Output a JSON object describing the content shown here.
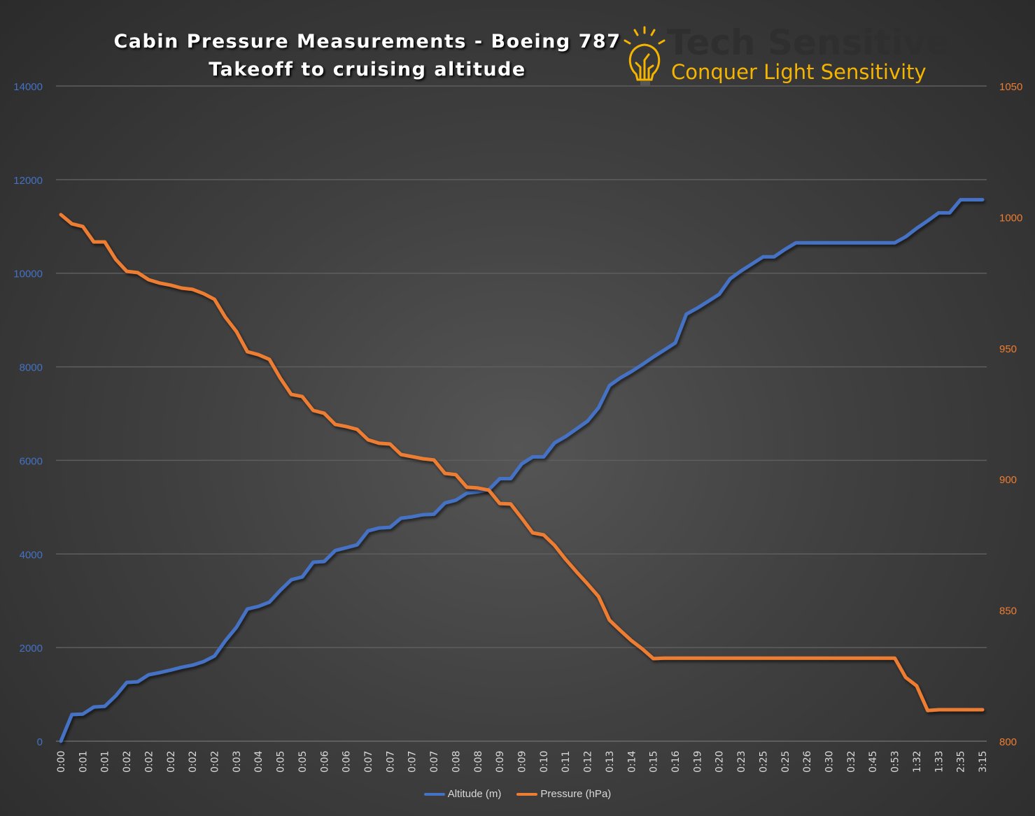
{
  "chart_data": {
    "type": "line",
    "title": "Cabin Pressure Measurements - Boeing 787",
    "subtitle": "Takeoff to cruising altitude",
    "x_tick_labels": [
      "0:00",
      "0:01",
      "0:01",
      "0:02",
      "0:02",
      "0:02",
      "0:02",
      "0:02",
      "0:03",
      "0:04",
      "0:05",
      "0:05",
      "0:06",
      "0:06",
      "0:07",
      "0:07",
      "0:07",
      "0:07",
      "0:08",
      "0:08",
      "0:09",
      "0:09",
      "0:10",
      "0:11",
      "0:12",
      "0:13",
      "0:14",
      "0:15",
      "0:16",
      "0:19",
      "0:20",
      "0:23",
      "0:25",
      "0:25",
      "0:26",
      "0:30",
      "0:32",
      "0:45",
      "0:53",
      "1:32",
      "1:33",
      "2:35",
      "3:15"
    ],
    "x_tick_every": 2,
    "point_count": 85,
    "y_left": {
      "label": "",
      "ylim": [
        0,
        14000
      ],
      "ticks": [
        0,
        2000,
        4000,
        6000,
        8000,
        10000,
        12000,
        14000
      ],
      "color": "#4472c4"
    },
    "y_right": {
      "label": "",
      "ylim": [
        800,
        1050
      ],
      "ticks": [
        800,
        850,
        900,
        950,
        1000,
        1050
      ],
      "color": "#ed7d31"
    },
    "grid": true,
    "legend_position": "bottom",
    "series": [
      {
        "name": "Altitude (m)",
        "axis": "left",
        "color": "#4472c4",
        "values": [
          0,
          570,
          580,
          730,
          745,
          970,
          1255,
          1270,
          1420,
          1465,
          1520,
          1580,
          1625,
          1700,
          1820,
          2150,
          2435,
          2825,
          2880,
          2970,
          3225,
          3450,
          3510,
          3825,
          3840,
          4075,
          4135,
          4195,
          4495,
          4555,
          4570,
          4765,
          4795,
          4840,
          4850,
          5090,
          5150,
          5300,
          5330,
          5375,
          5610,
          5610,
          5925,
          6075,
          6075,
          6375,
          6510,
          6675,
          6840,
          7125,
          7600,
          7765,
          7900,
          8050,
          8210,
          8360,
          8510,
          9125,
          9255,
          9400,
          9550,
          9880,
          10050,
          10200,
          10350,
          10350,
          10510,
          10650,
          10650,
          10650,
          10650,
          10650,
          10650,
          10650,
          10650,
          10650,
          10650,
          10780,
          10960,
          11120,
          11290,
          11290,
          11570,
          11570,
          11570
        ]
      },
      {
        "name": "Pressure (hPa)",
        "axis": "right",
        "color": "#ed7d31",
        "values": [
          1000.9,
          997.4,
          996.4,
          990.5,
          990.5,
          983.8,
          979.3,
          978.8,
          976.1,
          974.8,
          974.0,
          972.9,
          972.4,
          970.8,
          968.6,
          961.7,
          956.3,
          948.6,
          947.5,
          945.7,
          938.5,
          932.3,
          931.5,
          926.2,
          925.1,
          920.9,
          920.1,
          919.0,
          915.0,
          913.7,
          913.4,
          909.4,
          908.6,
          907.8,
          907.3,
          902.2,
          901.7,
          896.9,
          896.6,
          895.8,
          890.7,
          890.5,
          885.1,
          879.5,
          878.7,
          874.7,
          869.4,
          864.6,
          860.0,
          855.2,
          846.2,
          842.2,
          838.4,
          835.2,
          831.5,
          831.7,
          831.7,
          831.7,
          831.7,
          831.7,
          831.7,
          831.7,
          831.7,
          831.7,
          831.7,
          831.7,
          831.7,
          831.7,
          831.7,
          831.7,
          831.7,
          831.7,
          831.7,
          831.7,
          831.7,
          831.7,
          831.7,
          824.3,
          821.1,
          811.7,
          812.0,
          812.0,
          812.0,
          812.0,
          812.0
        ]
      }
    ]
  },
  "logo": {
    "name": "Tech Sensitive",
    "tagline": "Conquer Light Sensitivity",
    "accent": "#f5b400"
  }
}
